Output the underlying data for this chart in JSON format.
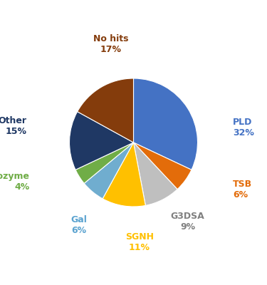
{
  "labels": [
    "PLD",
    "TSB",
    "G3DSA",
    "SGNH",
    "Gal",
    "Lysozyme",
    "Other",
    "No hits"
  ],
  "values": [
    32,
    6,
    9,
    11,
    6,
    4,
    15,
    17
  ],
  "colors": [
    "#4472C4",
    "#E36C0A",
    "#BFBFBF",
    "#FFC000",
    "#70ADCF",
    "#70AD47",
    "#1F3864",
    "#843C0C"
  ],
  "label_colors": [
    "#4472C4",
    "#E36C0A",
    "#808080",
    "#FFC000",
    "#5BA3D0",
    "#70AD47",
    "#1F3864",
    "#843C0C"
  ],
  "startangle": 90,
  "figsize": [
    3.75,
    4.0
  ],
  "dpi": 100,
  "label_positions": {
    "PLD": [
      1.32,
      0.2,
      "left"
    ],
    "TSB": [
      1.32,
      -0.62,
      "left"
    ],
    "G3DSA": [
      0.72,
      -1.05,
      "center"
    ],
    "SGNH": [
      0.08,
      -1.32,
      "center"
    ],
    "Gal": [
      -0.72,
      -1.1,
      "center"
    ],
    "Lysozyme": [
      -1.38,
      -0.52,
      "right"
    ],
    "Other": [
      -1.42,
      0.22,
      "right"
    ],
    "No hits": [
      -0.3,
      1.3,
      "center"
    ]
  }
}
